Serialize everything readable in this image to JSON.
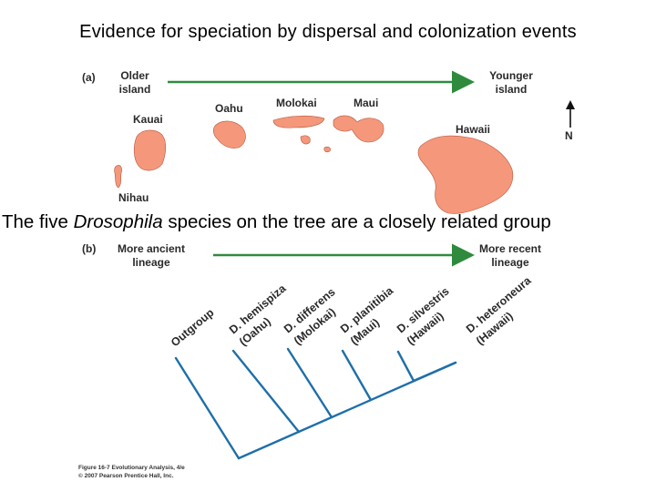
{
  "title": "Evidence for speciation by dispersal and colonization events",
  "subtitle": {
    "before": "The five ",
    "italic": "Drosophila",
    "after": " species on the tree are a closely related group"
  },
  "panel_a": {
    "label": "(a)",
    "left_label": [
      "Older",
      "island"
    ],
    "right_label": [
      "Younger",
      "island"
    ],
    "north": "N",
    "islands": {
      "kauai": "Kauai",
      "niihau": "Nihau",
      "oahu": "Oahu",
      "molokai": "Molokai",
      "maui": "Maui",
      "hawaii": "Hawaii"
    },
    "island_color": "#f4977b"
  },
  "panel_b": {
    "label": "(b)",
    "left_label": [
      "More ancient",
      "lineage"
    ],
    "right_label": [
      "More recent",
      "lineage"
    ],
    "taxa": [
      {
        "name": "Outgroup",
        "island": ""
      },
      {
        "name": "D. hemispiza",
        "island": "(Oahu)"
      },
      {
        "name": "D. differens",
        "island": "(Molokai)"
      },
      {
        "name": "D. planitibia",
        "island": "(Maui)"
      },
      {
        "name": "D. silvestris",
        "island": "(Hawaii)"
      },
      {
        "name": "D. heteroneura",
        "island": "(Hawaii)"
      }
    ],
    "tree_color": "#1f6fa8",
    "arrow_color": "#2e8b3d"
  },
  "credits": [
    "Figure 16-7  Evolutionary Analysis, 4/e",
    "© 2007 Pearson Prentice Hall, Inc."
  ]
}
